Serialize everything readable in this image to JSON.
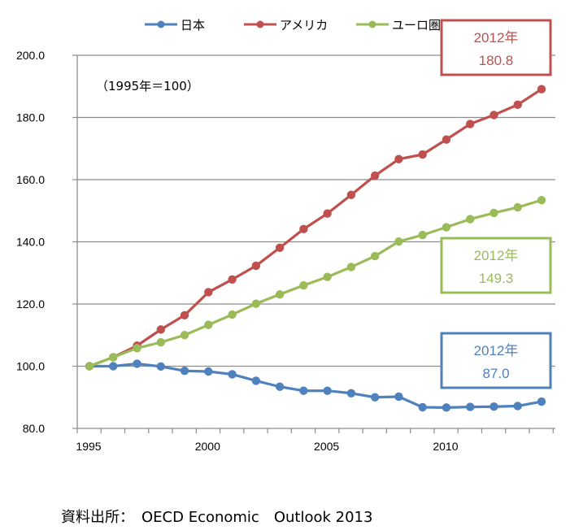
{
  "chart_data": {
    "type": "line",
    "title": "",
    "note": "（1995年＝100）",
    "xlabel": "",
    "ylabel": "",
    "x": [
      1995,
      1996,
      1997,
      1998,
      1999,
      2000,
      2001,
      2002,
      2003,
      2004,
      2005,
      2006,
      2007,
      2008,
      2009,
      2010,
      2011,
      2012,
      2013,
      2014
    ],
    "x_tick_labels": [
      "1995",
      "2000",
      "2005",
      "2010"
    ],
    "x_tick_values": [
      1995,
      2000,
      2005,
      2010
    ],
    "ylim": [
      80,
      200
    ],
    "y_ticks": [
      80,
      100,
      120,
      140,
      160,
      180,
      200
    ],
    "y_tick_labels": [
      "80.0",
      "100.0",
      "120.0",
      "140.0",
      "160.0",
      "180.0",
      "200.0"
    ],
    "grid": true,
    "legend_position": "top-center",
    "series": [
      {
        "name": "日本",
        "color": "#4F81BD",
        "values": [
          100,
          100,
          100.8,
          99.9,
          98.5,
          98.3,
          97.4,
          95.3,
          93.4,
          92.1,
          92.1,
          91.3,
          90.0,
          90.2,
          86.8,
          86.7,
          86.9,
          87.0,
          87.2,
          88.6
        ]
      },
      {
        "name": "アメリカ",
        "color": "#C0504D",
        "values": [
          100,
          102.9,
          106.6,
          111.8,
          116.4,
          123.8,
          127.9,
          132.3,
          138.1,
          144.1,
          149.1,
          155.1,
          161.3,
          166.6,
          168.1,
          172.9,
          177.9,
          180.8,
          184.1,
          189.1
        ]
      },
      {
        "name": "ユーロ圏",
        "color": "#9BBB59",
        "values": [
          100,
          102.9,
          105.8,
          107.7,
          110.0,
          113.3,
          116.6,
          120.1,
          123.1,
          126.0,
          128.7,
          131.9,
          135.4,
          140.1,
          142.2,
          144.7,
          147.3,
          149.3,
          151.1,
          153.4
        ]
      }
    ],
    "annotations": [
      {
        "series": "アメリカ",
        "line1": "2012年",
        "line2": "180.8",
        "color": "#C0504D"
      },
      {
        "series": "ユーロ圏",
        "line1": "2012年",
        "line2": "149.3",
        "color": "#9BBB59"
      },
      {
        "series": "日本",
        "line1": "2012年",
        "line2": "87.0",
        "color": "#4F81BD"
      }
    ]
  },
  "footer": {
    "source": "資料出所：　OECD Economic　Outlook 2013"
  }
}
